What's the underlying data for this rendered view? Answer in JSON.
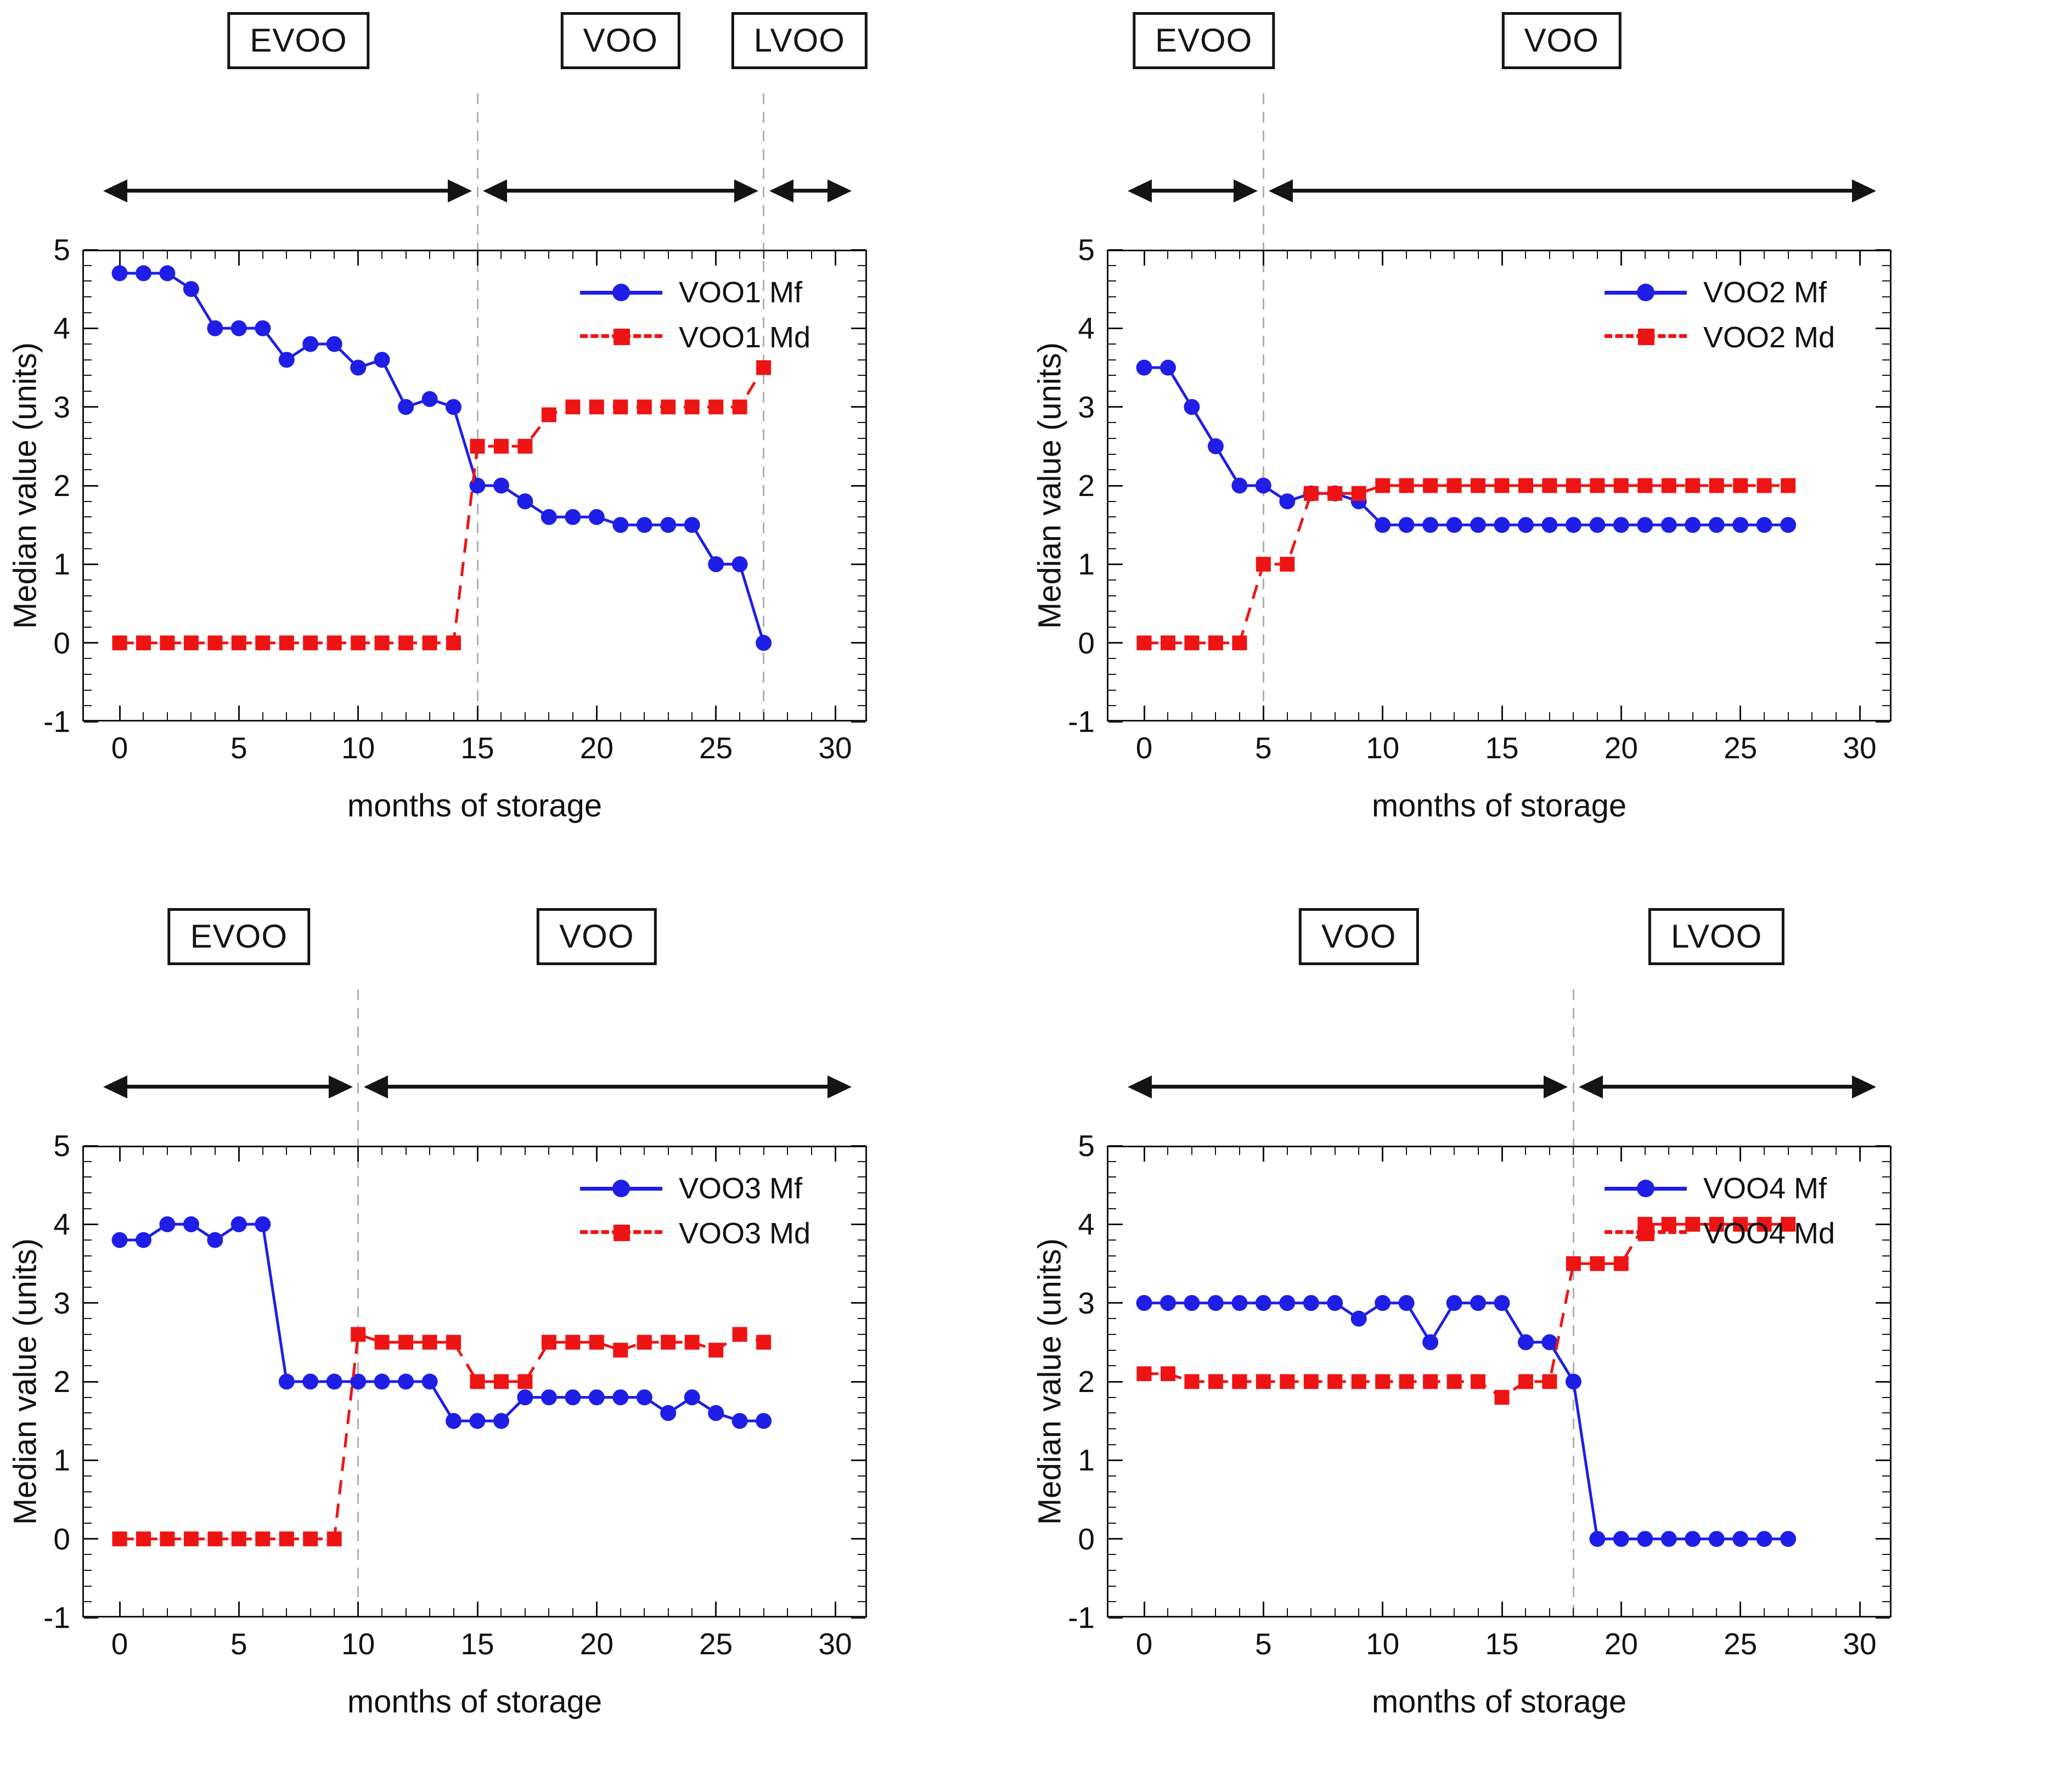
{
  "figure": {
    "background": "#ffffff",
    "description": "Four line charts (2x2) of sensory median values of virgin olive oil samples VOO1-VOO4 during storage, each with fruity (Mf) and defect (Md) medians and quality-grade regions EVOO/VOO/LVOO"
  },
  "colors": {
    "mf_blue": "#1e1ee6",
    "md_red": "#ee1414",
    "boundary_gray": "#b0b0b0",
    "axis_black": "#141414"
  },
  "axes_common": {
    "xlabel": "months of storage",
    "ylabel": "Median value (units)",
    "xticks": [
      0,
      5,
      10,
      15,
      20,
      25,
      30
    ],
    "yticks": [
      -1,
      0,
      1,
      2,
      3,
      4,
      5
    ],
    "xlim": [
      0,
      30
    ],
    "ylim": [
      -1,
      5
    ],
    "grid": false,
    "legend_position": "top-right",
    "months": [
      0,
      1,
      2,
      3,
      4,
      5,
      6,
      7,
      8,
      9,
      10,
      11,
      12,
      13,
      14,
      15,
      16,
      17,
      18,
      19,
      20,
      21,
      22,
      23,
      24,
      25,
      26,
      27
    ]
  },
  "chart_data": [
    {
      "type": "line",
      "id": "voo1",
      "panel": "top-left",
      "series": [
        {
          "name": "VOO1 Mf",
          "color_key": "mf_blue",
          "line": "solid",
          "marker": "circle",
          "values": [
            4.7,
            4.7,
            4.7,
            4.5,
            4.0,
            4.0,
            4.0,
            3.6,
            3.8,
            3.8,
            3.5,
            3.6,
            3.0,
            3.1,
            3.0,
            2.0,
            2.0,
            1.8,
            1.6,
            1.6,
            1.6,
            1.5,
            1.5,
            1.5,
            1.5,
            1.0,
            1.0,
            0.0
          ]
        },
        {
          "name": "VOO1 Md",
          "color_key": "md_red",
          "line": "dashed",
          "marker": "square",
          "values": [
            0,
            0,
            0,
            0,
            0,
            0,
            0,
            0,
            0,
            0,
            0,
            0,
            0,
            0,
            0,
            2.5,
            2.5,
            2.5,
            2.9,
            3.0,
            3.0,
            3.0,
            3.0,
            3.0,
            3.0,
            3.0,
            3.0,
            3.5
          ]
        }
      ],
      "regions": [
        {
          "label": "EVOO",
          "from": -0.7,
          "to": 15
        },
        {
          "label": "VOO",
          "from": 15,
          "to": 27
        },
        {
          "label": "LVOO",
          "from": 27,
          "to": 30.7
        }
      ],
      "boundaries": [
        15,
        27
      ]
    },
    {
      "type": "line",
      "id": "voo2",
      "panel": "top-right",
      "series": [
        {
          "name": "VOO2 Mf",
          "color_key": "mf_blue",
          "line": "solid",
          "marker": "circle",
          "values": [
            3.5,
            3.5,
            3.0,
            2.5,
            2.0,
            2.0,
            1.8,
            1.9,
            1.9,
            1.8,
            1.5,
            1.5,
            1.5,
            1.5,
            1.5,
            1.5,
            1.5,
            1.5,
            1.5,
            1.5,
            1.5,
            1.5,
            1.5,
            1.5,
            1.5,
            1.5,
            1.5,
            1.5
          ]
        },
        {
          "name": "VOO2 Md",
          "color_key": "md_red",
          "line": "dashed",
          "marker": "square",
          "values": [
            0,
            0,
            0,
            0,
            0,
            1.0,
            1.0,
            1.9,
            1.9,
            1.9,
            2.0,
            2.0,
            2.0,
            2.0,
            2.0,
            2.0,
            2.0,
            2.0,
            2.0,
            2.0,
            2.0,
            2.0,
            2.0,
            2.0,
            2.0,
            2.0,
            2.0,
            2.0
          ]
        }
      ],
      "regions": [
        {
          "label": "EVOO",
          "from": -0.7,
          "to": 5
        },
        {
          "label": "VOO",
          "from": 5,
          "to": 30.7
        }
      ],
      "boundaries": [
        5
      ]
    },
    {
      "type": "line",
      "id": "voo3",
      "panel": "bottom-left",
      "series": [
        {
          "name": "VOO3 Mf",
          "color_key": "mf_blue",
          "line": "solid",
          "marker": "circle",
          "values": [
            3.8,
            3.8,
            4.0,
            4.0,
            3.8,
            4.0,
            4.0,
            2.0,
            2.0,
            2.0,
            2.0,
            2.0,
            2.0,
            2.0,
            1.5,
            1.5,
            1.5,
            1.8,
            1.8,
            1.8,
            1.8,
            1.8,
            1.8,
            1.6,
            1.8,
            1.6,
            1.5,
            1.5
          ]
        },
        {
          "name": "VOO3 Md",
          "color_key": "md_red",
          "line": "dashed",
          "marker": "square",
          "values": [
            0,
            0,
            0,
            0,
            0,
            0,
            0,
            0,
            0,
            0,
            2.6,
            2.5,
            2.5,
            2.5,
            2.5,
            2.0,
            2.0,
            2.0,
            2.5,
            2.5,
            2.5,
            2.4,
            2.5,
            2.5,
            2.5,
            2.4,
            2.6,
            2.5
          ]
        }
      ],
      "regions": [
        {
          "label": "EVOO",
          "from": -0.7,
          "to": 10
        },
        {
          "label": "VOO",
          "from": 10,
          "to": 30.7
        }
      ],
      "boundaries": [
        10
      ]
    },
    {
      "type": "line",
      "id": "voo4",
      "panel": "bottom-right",
      "series": [
        {
          "name": "VOO4 Mf",
          "color_key": "mf_blue",
          "line": "solid",
          "marker": "circle",
          "values": [
            3.0,
            3.0,
            3.0,
            3.0,
            3.0,
            3.0,
            3.0,
            3.0,
            3.0,
            2.8,
            3.0,
            3.0,
            2.5,
            3.0,
            3.0,
            3.0,
            2.5,
            2.5,
            2.0,
            0,
            0,
            0,
            0,
            0,
            0,
            0,
            0,
            0
          ]
        },
        {
          "name": "VOO4 Md",
          "color_key": "md_red",
          "line": "dashed",
          "marker": "square",
          "values": [
            2.1,
            2.1,
            2.0,
            2.0,
            2.0,
            2.0,
            2.0,
            2.0,
            2.0,
            2.0,
            2.0,
            2.0,
            2.0,
            2.0,
            2.0,
            1.8,
            2.0,
            2.0,
            3.5,
            3.5,
            3.5,
            4.0,
            4.0,
            4.0,
            4.0,
            4.0,
            4.0,
            4.0
          ]
        }
      ],
      "regions": [
        {
          "label": "VOO",
          "from": -0.7,
          "to": 18
        },
        {
          "label": "LVOO",
          "from": 18,
          "to": 30.7
        }
      ],
      "boundaries": [
        18
      ]
    }
  ]
}
